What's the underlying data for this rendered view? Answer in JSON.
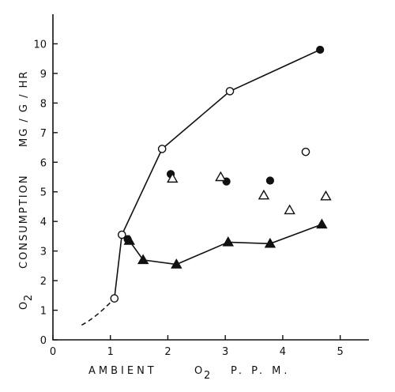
{
  "chart_data": {
    "type": "scatter",
    "xlabel": {
      "text": "AMBIENT",
      "o2": "O",
      "sub": "2",
      "unit": "P. P. M."
    },
    "ylabel": {
      "o2": "O",
      "sub": "2",
      "word": "CONSUMPTION",
      "unit": "MG / G / HR"
    },
    "xlim": [
      0,
      5.5
    ],
    "ylim": [
      0,
      11
    ],
    "xticks": [
      0,
      1,
      2,
      3,
      4,
      5
    ],
    "yticks": [
      0,
      1,
      2,
      3,
      4,
      5,
      6,
      7,
      8,
      9,
      10
    ],
    "grid": false,
    "series": [
      {
        "marker": "open-circle",
        "values": [
          [
            1.07,
            1.4
          ],
          [
            1.2,
            3.55
          ],
          [
            1.9,
            6.45
          ],
          [
            3.08,
            8.4
          ],
          [
            4.4,
            6.35
          ]
        ]
      },
      {
        "marker": "filled-circle",
        "values": [
          [
            1.3,
            3.4
          ],
          [
            2.05,
            5.6
          ],
          [
            3.02,
            5.35
          ],
          [
            3.78,
            5.38
          ],
          [
            4.65,
            9.8
          ]
        ]
      },
      {
        "marker": "open-triangle",
        "values": [
          [
            2.08,
            5.45
          ],
          [
            2.92,
            5.5
          ],
          [
            3.67,
            4.88
          ],
          [
            4.12,
            4.38
          ],
          [
            4.75,
            4.85
          ]
        ]
      },
      {
        "marker": "filled-triangle",
        "values": [
          [
            1.33,
            3.35
          ],
          [
            1.57,
            2.7
          ],
          [
            2.15,
            2.55
          ],
          [
            3.05,
            3.3
          ],
          [
            3.78,
            3.25
          ],
          [
            4.68,
            3.9
          ]
        ]
      }
    ],
    "upper_curve": [
      [
        1.07,
        1.4
      ],
      [
        1.2,
        3.55
      ],
      [
        1.9,
        6.45
      ],
      [
        3.08,
        8.4
      ],
      [
        4.65,
        9.8
      ]
    ],
    "lower_curve": [
      [
        1.2,
        3.55
      ],
      [
        1.33,
        3.35
      ],
      [
        1.57,
        2.7
      ],
      [
        2.15,
        2.55
      ],
      [
        3.05,
        3.3
      ],
      [
        3.78,
        3.25
      ],
      [
        4.68,
        3.9
      ]
    ],
    "dashed_curve": [
      [
        0.5,
        0.5
      ],
      [
        0.75,
        0.75
      ],
      [
        1.07,
        1.4
      ]
    ]
  }
}
